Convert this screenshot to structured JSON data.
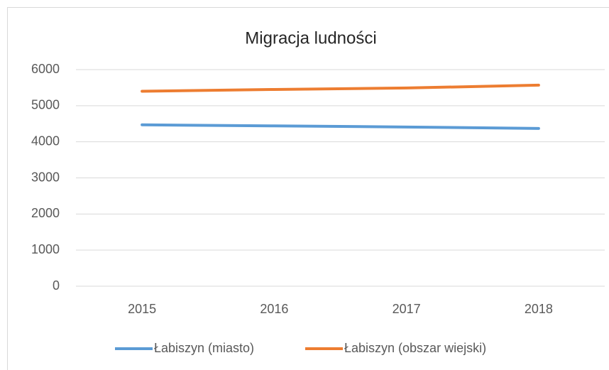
{
  "chart_data": {
    "type": "line",
    "title": "Migracja ludności",
    "categories": [
      "2015",
      "2016",
      "2017",
      "2018"
    ],
    "series": [
      {
        "name": "Łabiszyn (miasto)",
        "color": "#5b9bd5",
        "values": [
          4470,
          4440,
          4410,
          4370
        ]
      },
      {
        "name": "Łabiszyn (obszar wiejski)",
        "color": "#ed7d31",
        "values": [
          5400,
          5450,
          5490,
          5570
        ]
      }
    ],
    "ylim": [
      0,
      6000
    ],
    "yticks": [
      0,
      1000,
      2000,
      3000,
      4000,
      5000,
      6000
    ],
    "grid": true,
    "legend": "bottom"
  }
}
